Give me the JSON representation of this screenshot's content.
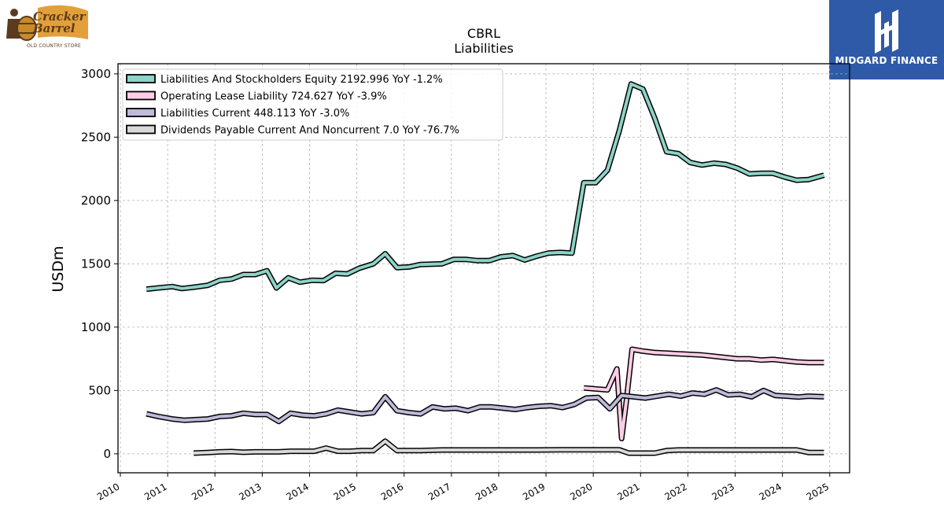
{
  "brand_left": {
    "name": "Cracker Barrel",
    "tagline": "OLD COUNTRY STORE"
  },
  "brand_right": {
    "name": "MIDGARD FINANCE"
  },
  "chart_data": {
    "type": "line",
    "title": "CBRL",
    "subtitle": "Liabilities",
    "xlabel": "",
    "ylabel": "USDm",
    "xlim": [
      2009.95,
      2025.42
    ],
    "ylim": [
      -150,
      3080
    ],
    "x_ticks": [
      "2010",
      "2011",
      "2012",
      "2013",
      "2014",
      "2015",
      "2016",
      "2017",
      "2018",
      "2019",
      "2020",
      "2021",
      "2022",
      "2023",
      "2024",
      "2025"
    ],
    "y_ticks": [
      0,
      500,
      1000,
      1500,
      2000,
      2500,
      3000
    ],
    "grid": true,
    "legend_position": "top-left",
    "series": [
      {
        "name": "Liabilities And Stockholders Equity  2192.996 YoY -1.2%",
        "color": "#8dd3c7",
        "points": [
          [
            2010.55,
            1300
          ],
          [
            2010.8,
            1310
          ],
          [
            2011.1,
            1320
          ],
          [
            2011.3,
            1305
          ],
          [
            2011.55,
            1315
          ],
          [
            2011.85,
            1330
          ],
          [
            2012.1,
            1370
          ],
          [
            2012.35,
            1380
          ],
          [
            2012.6,
            1415
          ],
          [
            2012.85,
            1415
          ],
          [
            2013.1,
            1445
          ],
          [
            2013.3,
            1310
          ],
          [
            2013.55,
            1390
          ],
          [
            2013.8,
            1355
          ],
          [
            2014.05,
            1370
          ],
          [
            2014.3,
            1368
          ],
          [
            2014.55,
            1425
          ],
          [
            2014.8,
            1420
          ],
          [
            2015.05,
            1465
          ],
          [
            2015.35,
            1500
          ],
          [
            2015.6,
            1580
          ],
          [
            2015.85,
            1470
          ],
          [
            2016.1,
            1475
          ],
          [
            2016.35,
            1495
          ],
          [
            2016.8,
            1500
          ],
          [
            2017.05,
            1535
          ],
          [
            2017.3,
            1535
          ],
          [
            2017.55,
            1525
          ],
          [
            2017.8,
            1525
          ],
          [
            2018.05,
            1555
          ],
          [
            2018.3,
            1565
          ],
          [
            2018.55,
            1530
          ],
          [
            2018.8,
            1560
          ],
          [
            2019.05,
            1585
          ],
          [
            2019.3,
            1590
          ],
          [
            2019.55,
            1585
          ],
          [
            2019.8,
            2140
          ],
          [
            2020.05,
            2140
          ],
          [
            2020.3,
            2240
          ],
          [
            2020.55,
            2550
          ],
          [
            2020.8,
            2920
          ],
          [
            2021.05,
            2880
          ],
          [
            2021.3,
            2650
          ],
          [
            2021.55,
            2385
          ],
          [
            2021.8,
            2370
          ],
          [
            2022.05,
            2300
          ],
          [
            2022.3,
            2280
          ],
          [
            2022.55,
            2295
          ],
          [
            2022.8,
            2285
          ],
          [
            2023.05,
            2255
          ],
          [
            2023.3,
            2210
          ],
          [
            2023.55,
            2215
          ],
          [
            2023.8,
            2215
          ],
          [
            2024.05,
            2185
          ],
          [
            2024.3,
            2160
          ],
          [
            2024.55,
            2165
          ],
          [
            2024.88,
            2200
          ]
        ]
      },
      {
        "name": "Operating Lease Liability  724.627 YoY -3.9%",
        "color": "#fccde5",
        "points": [
          [
            2019.8,
            520
          ],
          [
            2020.3,
            505
          ],
          [
            2020.5,
            670
          ],
          [
            2020.6,
            120
          ],
          [
            2020.7,
            420
          ],
          [
            2020.82,
            825
          ],
          [
            2021.05,
            810
          ],
          [
            2021.3,
            800
          ],
          [
            2021.55,
            795
          ],
          [
            2021.8,
            790
          ],
          [
            2022.05,
            785
          ],
          [
            2022.3,
            780
          ],
          [
            2022.55,
            770
          ],
          [
            2022.8,
            760
          ],
          [
            2023.05,
            750
          ],
          [
            2023.3,
            750
          ],
          [
            2023.55,
            740
          ],
          [
            2023.8,
            745
          ],
          [
            2024.05,
            735
          ],
          [
            2024.3,
            725
          ],
          [
            2024.55,
            720
          ],
          [
            2024.88,
            720
          ]
        ]
      },
      {
        "name": "Liabilities Current  448.113 YoY -3.0%",
        "color": "#bebada",
        "points": [
          [
            2010.55,
            315
          ],
          [
            2010.8,
            295
          ],
          [
            2011.1,
            275
          ],
          [
            2011.35,
            265
          ],
          [
            2011.6,
            270
          ],
          [
            2011.85,
            275
          ],
          [
            2012.1,
            295
          ],
          [
            2012.35,
            300
          ],
          [
            2012.6,
            320
          ],
          [
            2012.85,
            310
          ],
          [
            2013.1,
            310
          ],
          [
            2013.35,
            255
          ],
          [
            2013.6,
            320
          ],
          [
            2013.85,
            305
          ],
          [
            2014.1,
            300
          ],
          [
            2014.35,
            315
          ],
          [
            2014.6,
            345
          ],
          [
            2014.85,
            330
          ],
          [
            2015.1,
            315
          ],
          [
            2015.35,
            325
          ],
          [
            2015.6,
            450
          ],
          [
            2015.85,
            340
          ],
          [
            2016.1,
            325
          ],
          [
            2016.35,
            315
          ],
          [
            2016.6,
            370
          ],
          [
            2016.85,
            355
          ],
          [
            2017.1,
            360
          ],
          [
            2017.35,
            340
          ],
          [
            2017.6,
            370
          ],
          [
            2017.85,
            370
          ],
          [
            2018.1,
            360
          ],
          [
            2018.35,
            350
          ],
          [
            2018.6,
            365
          ],
          [
            2018.85,
            375
          ],
          [
            2019.1,
            380
          ],
          [
            2019.35,
            365
          ],
          [
            2019.6,
            390
          ],
          [
            2019.85,
            440
          ],
          [
            2020.1,
            445
          ],
          [
            2020.35,
            355
          ],
          [
            2020.6,
            460
          ],
          [
            2020.85,
            450
          ],
          [
            2021.1,
            440
          ],
          [
            2021.35,
            455
          ],
          [
            2021.6,
            470
          ],
          [
            2021.85,
            455
          ],
          [
            2022.1,
            480
          ],
          [
            2022.35,
            470
          ],
          [
            2022.6,
            505
          ],
          [
            2022.85,
            465
          ],
          [
            2023.1,
            470
          ],
          [
            2023.35,
            450
          ],
          [
            2023.6,
            500
          ],
          [
            2023.85,
            460
          ],
          [
            2024.1,
            455
          ],
          [
            2024.35,
            448
          ],
          [
            2024.55,
            455
          ],
          [
            2024.88,
            450
          ]
        ]
      },
      {
        "name": "Dividends Payable Current And Noncurrent  7.0 YoY -76.7%",
        "color": "#d9d9d9",
        "points": [
          [
            2011.55,
            5
          ],
          [
            2011.85,
            10
          ],
          [
            2012.1,
            15
          ],
          [
            2012.35,
            18
          ],
          [
            2012.6,
            12
          ],
          [
            2012.85,
            15
          ],
          [
            2013.1,
            15
          ],
          [
            2013.35,
            15
          ],
          [
            2013.6,
            20
          ],
          [
            2013.85,
            20
          ],
          [
            2014.1,
            20
          ],
          [
            2014.35,
            45
          ],
          [
            2014.6,
            20
          ],
          [
            2014.85,
            20
          ],
          [
            2015.1,
            25
          ],
          [
            2015.35,
            25
          ],
          [
            2015.6,
            100
          ],
          [
            2015.85,
            25
          ],
          [
            2016.1,
            25
          ],
          [
            2016.35,
            25
          ],
          [
            2016.8,
            30
          ],
          [
            2017.3,
            30
          ],
          [
            2017.8,
            30
          ],
          [
            2018.3,
            30
          ],
          [
            2018.8,
            30
          ],
          [
            2019.3,
            32
          ],
          [
            2019.8,
            32
          ],
          [
            2020.3,
            32
          ],
          [
            2020.55,
            32
          ],
          [
            2020.75,
            5
          ],
          [
            2021.0,
            5
          ],
          [
            2021.3,
            5
          ],
          [
            2021.55,
            25
          ],
          [
            2021.8,
            30
          ],
          [
            2022.3,
            30
          ],
          [
            2022.8,
            30
          ],
          [
            2023.3,
            30
          ],
          [
            2023.8,
            30
          ],
          [
            2024.3,
            30
          ],
          [
            2024.55,
            10
          ],
          [
            2024.88,
            10
          ]
        ]
      }
    ]
  }
}
